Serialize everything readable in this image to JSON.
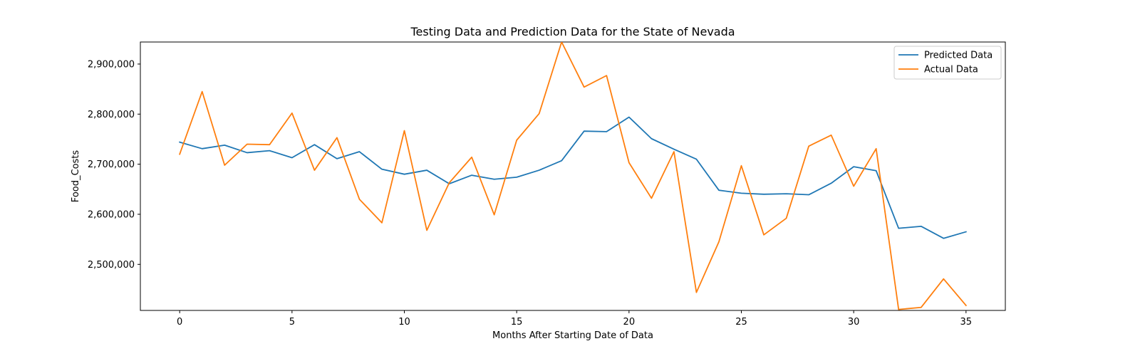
{
  "chart_data": {
    "type": "line",
    "title": "Testing Data and Prediction Data for the State of Nevada",
    "xlabel": "Months After Starting Date of Data",
    "ylabel": "Food_Costs",
    "xlim": [
      -1.75,
      36.75
    ],
    "ylim": [
      2408000,
      2944000
    ],
    "xticks": [
      0,
      5,
      10,
      15,
      20,
      25,
      30,
      35
    ],
    "xtick_labels": [
      "0",
      "5",
      "10",
      "15",
      "20",
      "25",
      "30",
      "35"
    ],
    "yticks": [
      2500000,
      2600000,
      2700000,
      2800000,
      2900000
    ],
    "ytick_labels": [
      "2,500,000",
      "2,600,000",
      "2,700,000",
      "2,800,000",
      "2,900,000"
    ],
    "grid": false,
    "legend_position": "top-right",
    "x": [
      0,
      1,
      2,
      3,
      4,
      5,
      6,
      7,
      8,
      9,
      10,
      11,
      12,
      13,
      14,
      15,
      16,
      17,
      18,
      19,
      20,
      21,
      22,
      23,
      24,
      25,
      26,
      27,
      28,
      29,
      30,
      31,
      32,
      33,
      34,
      35
    ],
    "series": [
      {
        "name": "Predicted Data",
        "color": "#1f77b4",
        "values": [
          2744000,
          2731000,
          2738000,
          2723000,
          2727000,
          2713000,
          2739000,
          2711000,
          2725000,
          2690000,
          2680000,
          2688000,
          2661000,
          2678000,
          2670000,
          2674000,
          2688000,
          2707000,
          2766000,
          2765000,
          2794000,
          2751000,
          2730000,
          2710000,
          2648000,
          2642000,
          2640000,
          2641000,
          2639000,
          2662000,
          2695000,
          2687000,
          2572000,
          2576000,
          2552000,
          2565000
        ]
      },
      {
        "name": "Actual Data",
        "color": "#ff7f0e",
        "values": [
          2720000,
          2845000,
          2698000,
          2740000,
          2739000,
          2802000,
          2688000,
          2753000,
          2630000,
          2583000,
          2767000,
          2568000,
          2663000,
          2714000,
          2599000,
          2748000,
          2801000,
          2944000,
          2854000,
          2877000,
          2703000,
          2632000,
          2725000,
          2444000,
          2545000,
          2697000,
          2559000,
          2592000,
          2736000,
          2758000,
          2656000,
          2731000,
          2410000,
          2414000,
          2471000,
          2418000
        ]
      }
    ]
  }
}
